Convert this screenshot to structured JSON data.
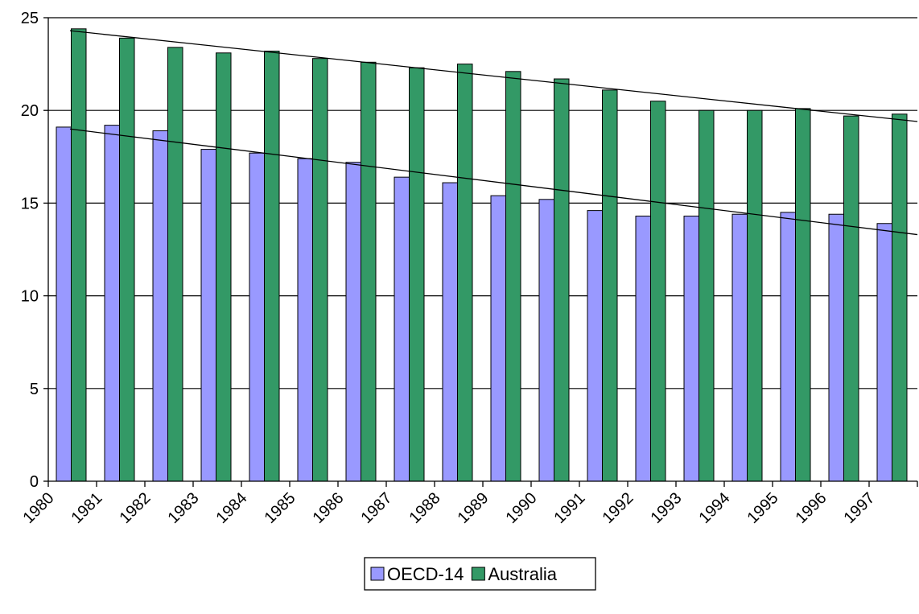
{
  "chart_data": {
    "type": "bar",
    "categories": [
      "1980",
      "1981",
      "1982",
      "1983",
      "1984",
      "1985",
      "1986",
      "1987",
      "1988",
      "1989",
      "1990",
      "1991",
      "1992",
      "1993",
      "1994",
      "1995",
      "1996",
      "1997"
    ],
    "series": [
      {
        "name": "OECD-14",
        "color": "#9999ff",
        "values": [
          19.1,
          19.2,
          18.9,
          17.9,
          17.7,
          17.4,
          17.2,
          16.4,
          16.1,
          15.4,
          15.2,
          14.6,
          14.3,
          14.3,
          14.4,
          14.5,
          14.4,
          13.9
        ]
      },
      {
        "name": "Australia",
        "color": "#339966",
        "values": [
          24.4,
          23.9,
          23.4,
          23.1,
          23.2,
          22.8,
          22.6,
          22.3,
          22.5,
          22.1,
          21.7,
          21.1,
          20.5,
          20.0,
          20.0,
          20.1,
          19.7,
          19.8
        ]
      }
    ],
    "trendlines": [
      {
        "series": "OECD-14",
        "start": 19.0,
        "end": 13.3
      },
      {
        "series": "Australia",
        "start": 24.3,
        "end": 19.4
      }
    ],
    "yticks": [
      "0",
      "5",
      "10",
      "15",
      "20",
      "25"
    ],
    "ylim": [
      0,
      25
    ],
    "grid": true,
    "legend": "bottom-center",
    "title": "",
    "xlabel": "",
    "ylabel": ""
  }
}
